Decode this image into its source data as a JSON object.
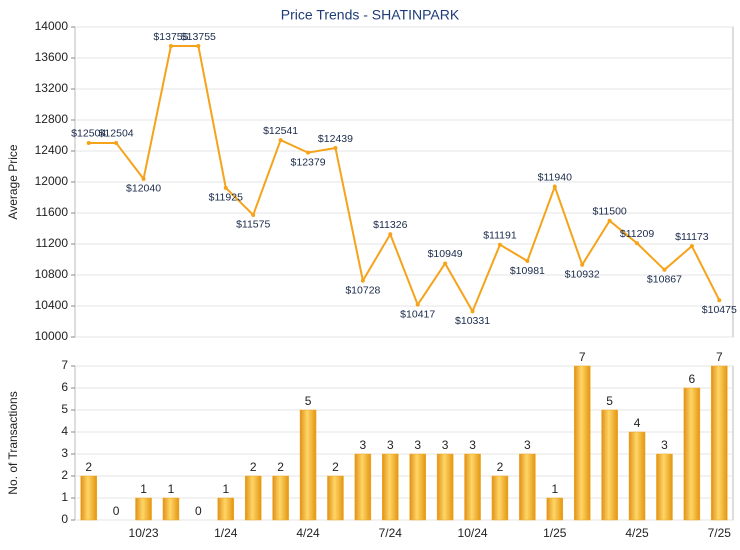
{
  "chart_data": [
    {
      "type": "line",
      "title": "Price Trends - SHATINPARK",
      "ylabel": "Average Price",
      "color": "#f5a31a",
      "values": [
        12504,
        12504,
        12040,
        13755,
        13755,
        11925,
        11575,
        12541,
        12379,
        12439,
        10728,
        11326,
        10417,
        10949,
        10331,
        11191,
        10981,
        11940,
        10932,
        11500,
        11209,
        10867,
        11173,
        10475
      ],
      "value_labels": [
        "$12504",
        "$12504",
        "$12040",
        "$13755",
        "$13755",
        "$11925",
        "$11575",
        "$12541",
        "$12379",
        "$12439",
        "$10728",
        "$11326",
        "$10417",
        "$10949",
        "$10331",
        "$11191",
        "$10981",
        "$11940",
        "$10932",
        "$11500",
        "$11209",
        "$10867",
        "$11173",
        "$10475"
      ],
      "ylim": [
        10000,
        14000
      ],
      "yticks": [
        10000,
        10400,
        10800,
        11200,
        11600,
        12000,
        12400,
        12800,
        13200,
        13600,
        14000
      ],
      "grid": true
    },
    {
      "type": "bar",
      "ylabel": "No. of Transactions",
      "color": "#f0a81e",
      "categories": [
        null,
        null,
        "10/23",
        null,
        null,
        "1/24",
        null,
        null,
        "4/24",
        null,
        null,
        "7/24",
        null,
        null,
        "10/24",
        null,
        null,
        "1/25",
        null,
        null,
        "4/25",
        null,
        null,
        "7/25"
      ],
      "values": [
        2,
        0,
        1,
        1,
        0,
        1,
        2,
        2,
        5,
        2,
        3,
        3,
        3,
        3,
        3,
        2,
        3,
        1,
        7,
        5,
        4,
        3,
        6,
        7
      ],
      "ylim": [
        0,
        7
      ],
      "yticks": [
        0,
        1,
        2,
        3,
        4,
        5,
        6,
        7
      ],
      "grid": true
    }
  ]
}
